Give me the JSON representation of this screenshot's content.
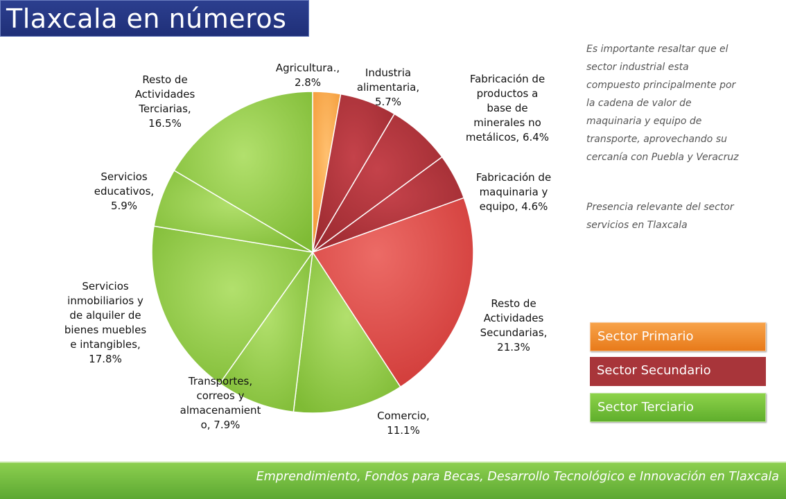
{
  "title": "Tlaxcala en números",
  "note_1": "Es importante resaltar que el sector industrial esta compuesto principalmente por la cadena de valor de maquinaria y equipo de transporte, aprovechando su cercanía con Puebla y Veracruz",
  "note_2": "Presencia relevante del sector servicios en Tlaxcala",
  "legend": {
    "primary": "Sector Primario",
    "secondary": "Sector Secundario",
    "tertiary": "Sector Terciario"
  },
  "colors": {
    "primary": "#f39a37",
    "secondary_dark": "#a4282d",
    "secondary_light": "#d9403f",
    "tertiary": "#8cc63f"
  },
  "footer": "Emprendimiento, Fondos para Becas, Desarrollo Tecnológico e Innovación en Tlaxcala",
  "chart_data": {
    "type": "pie",
    "title": "",
    "start_angle_deg": 0,
    "direction": "clockwise",
    "slices": [
      {
        "label": "Agricultura., 2.8%",
        "value": 2.8,
        "sector": "primary"
      },
      {
        "label": "Industria alimentaria, 5.7%",
        "value": 5.7,
        "sector": "secondary_dark"
      },
      {
        "label": "Fabricación de productos a base de minerales no metálicos, 6.4%",
        "value": 6.4,
        "sector": "secondary_dark"
      },
      {
        "label": "Fabricación de maquinaria y equipo, 4.6%",
        "value": 4.6,
        "sector": "secondary_dark"
      },
      {
        "label": "Resto de Actividades Secundarias, 21.3%",
        "value": 21.3,
        "sector": "secondary_light"
      },
      {
        "label": "Comercio, 11.1%",
        "value": 11.1,
        "sector": "tertiary"
      },
      {
        "label": "Transportes, correos y almacenamiento, 7.9%",
        "value": 7.9,
        "sector": "tertiary"
      },
      {
        "label": "Servicios inmobiliarios y de alquiler de bienes muebles e intangibles, 17.8%",
        "value": 17.8,
        "sector": "tertiary"
      },
      {
        "label": "Servicios educativos, 5.9%",
        "value": 5.9,
        "sector": "tertiary"
      },
      {
        "label": "Resto de Actividades Terciarias, 16.5%",
        "value": 16.5,
        "sector": "tertiary"
      }
    ],
    "label_lines": [
      [
        "Agricultura.,",
        "2.8%"
      ],
      [
        "Industria",
        "alimentaria,",
        "5.7%"
      ],
      [
        "Fabricación de",
        "productos a",
        "base de",
        "minerales no",
        "metálicos, 6.4%"
      ],
      [
        "Fabricación de",
        "maquinaria y",
        "equipo, 4.6%"
      ],
      [
        "Resto de",
        "Actividades",
        "Secundarias,",
        "21.3%"
      ],
      [
        "Comercio,",
        "11.1%"
      ],
      [
        "Transportes,",
        "correos y",
        "almacenamient",
        "o, 7.9%"
      ],
      [
        "Servicios",
        "inmobiliarios y",
        "de alquiler de",
        "bienes muebles",
        "e intangibles,",
        "17.8%"
      ],
      [
        "Servicios",
        "educativos,",
        "5.9%"
      ],
      [
        "Resto de",
        "Actividades",
        "Terciarias,",
        "16.5%"
      ]
    ]
  }
}
